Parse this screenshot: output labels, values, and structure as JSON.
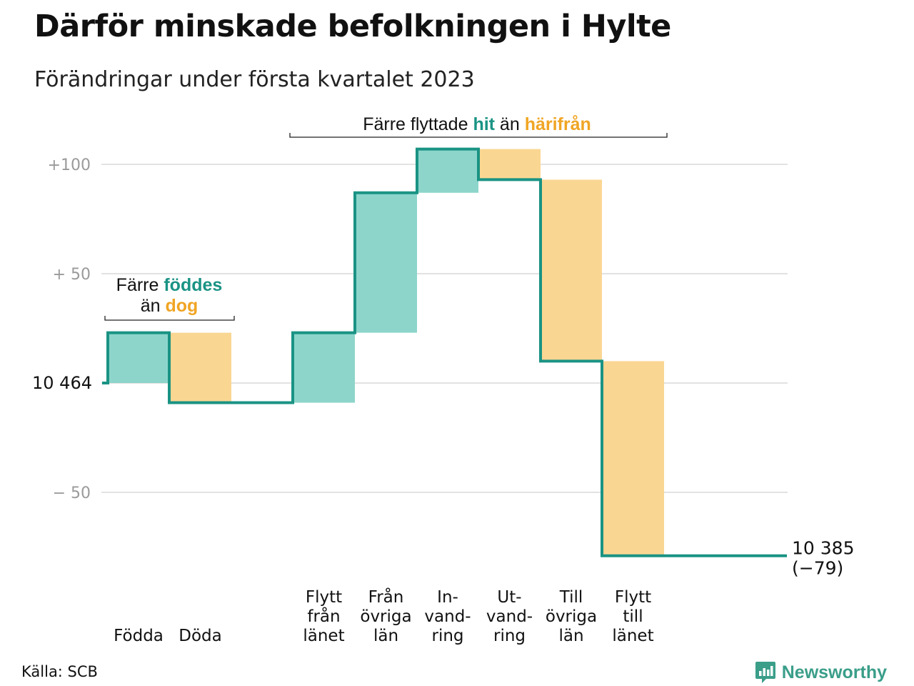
{
  "title": "Därför minskade befolkningen i Hylte",
  "subtitle": "Förändringar under första kvartalet 2023",
  "source": "Källa: SCB",
  "brand": "Newsworthy",
  "colors": {
    "line": "#1a9384",
    "increase": "#8dd5cb",
    "decrease": "#fad693",
    "grid": "#e2e2e2",
    "axis_text": "#9a9a9a",
    "accent_green": "#1a9384",
    "accent_orange": "#f0a524"
  },
  "chart_data": {
    "type": "waterfall",
    "start": {
      "label": "10 464",
      "value": 10464
    },
    "end": {
      "label": "10 385",
      "delta_label": "(−79)",
      "value": 10385
    },
    "yticks": [
      {
        "label": "+100",
        "value": 100
      },
      {
        "label": "+ 50",
        "value": 50
      },
      {
        "label": "− 50",
        "value": -50
      }
    ],
    "steps": [
      {
        "label": [
          "Födda"
        ],
        "delta": 23
      },
      {
        "label": [
          "Döda"
        ],
        "delta": -32
      },
      {
        "label": [
          "Flytt",
          "från",
          "länet"
        ],
        "delta": 32
      },
      {
        "label": [
          "Från",
          "övriga",
          "län"
        ],
        "delta": 64
      },
      {
        "label": [
          "In-",
          "vand-",
          "ring"
        ],
        "delta": 20
      },
      {
        "label": [
          "Ut-",
          "vand-",
          "ring"
        ],
        "delta": -14
      },
      {
        "label": [
          "Till",
          "övriga",
          "län"
        ],
        "delta": -83
      },
      {
        "label": [
          "Flytt",
          "till",
          "länet"
        ],
        "delta": -89
      }
    ],
    "annotations": [
      {
        "parts": [
          {
            "text": "Färre flyttade ",
            "accent": ""
          },
          {
            "text": "hit",
            "accent": "green"
          },
          {
            "text": " än ",
            "accent": ""
          },
          {
            "text": "härifrån",
            "accent": "orange"
          }
        ]
      },
      {
        "line1": [
          {
            "text": "Färre ",
            "accent": ""
          },
          {
            "text": "föddes",
            "accent": "green"
          }
        ],
        "line2": [
          {
            "text": "än ",
            "accent": ""
          },
          {
            "text": "dog",
            "accent": "orange"
          }
        ]
      }
    ]
  }
}
